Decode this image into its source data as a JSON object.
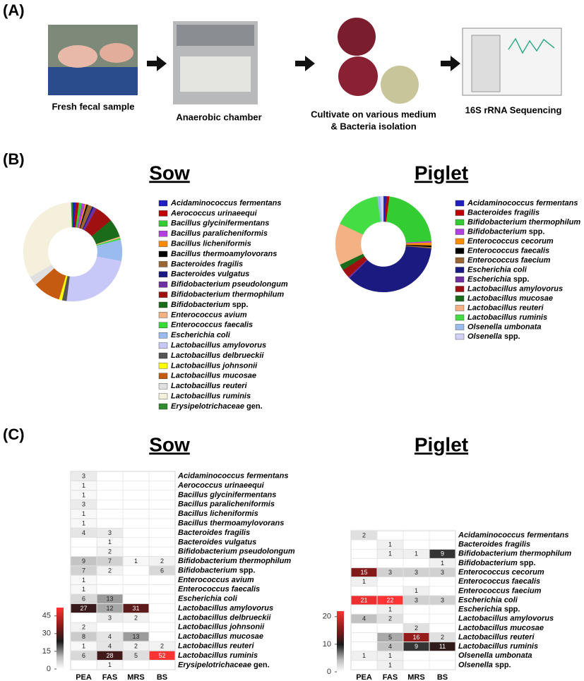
{
  "panel_labels": [
    "(A)",
    "(B)",
    "(C)"
  ],
  "workflow": {
    "steps": [
      {
        "caption": [
          "Fresh fecal sample"
        ]
      },
      {
        "caption": [
          "Anaerobic chamber"
        ]
      },
      {
        "caption": [
          "Cultivate on various medium",
          "& Bacteria isolation"
        ]
      },
      {
        "caption": [
          "16S rRNA Sequencing"
        ]
      }
    ]
  },
  "chart_data": [
    {
      "type": "pie",
      "title": "Sow",
      "hole": true,
      "categories": [
        "Acidaminococcus fermentans",
        "Aerococcus urinaeequi",
        "Bacillus glycinifermentans",
        "Bacillus paralicheniformis",
        "Bacillus licheniformis",
        "Bacillus thermoamylovorans",
        "Bacteroides fragilis",
        "Bacteroides vulgatus",
        "Bifidobacterium pseudolongum",
        "Bifidobacterium thermophilum",
        "Bifidobacterium spp.",
        "Enterococcus avium",
        "Enterococcus faecalis",
        "Escherichia coli",
        "Lactobacillus amylovorus",
        "Lactobacillus delbrueckii",
        "Lactobacillus johnsonii",
        "Lactobacillus mucosae",
        "Lactobacillus reuteri",
        "Lactobacillus ruminis",
        "Erysipelotrichaceae gen."
      ],
      "values": [
        1,
        1,
        1,
        1,
        0.5,
        0.5,
        1.5,
        0.5,
        1,
        6,
        6,
        0.5,
        0.5,
        7,
        24,
        1.5,
        1,
        9,
        3,
        33,
        0.5
      ],
      "colors": [
        "#1f1fbf",
        "#c00000",
        "#33cc33",
        "#b040e0",
        "#ff8c00",
        "#000000",
        "#996633",
        "#1a1a80",
        "#7030a0",
        "#a01010",
        "#1a6b1a",
        "#f4b183",
        "#33dd33",
        "#99bbee",
        "#c8c8f8",
        "#555555",
        "#ffff00",
        "#c55a11",
        "#e0e0e0",
        "#f5f0dc",
        "#2e8b2e"
      ]
    },
    {
      "type": "pie",
      "title": "Piglet",
      "hole": true,
      "categories": [
        "Acidaminococcus fermentans",
        "Bacteroides fragilis",
        "Bifidobacterium thermophilum",
        "Bifidobacterium spp.",
        "Enterococcus cecorum",
        "Enterococcus faecalis",
        "Enterococcus faecium",
        "Escherichia coli",
        "Escherichia spp.",
        "Lactobacillus amylovorus",
        "Lactobacillus mucosae",
        "Lactobacillus reuteri",
        "Lactobacillus ruminis",
        "Olsenella umbonata",
        "Olsenella spp."
      ],
      "values": [
        1,
        1,
        22,
        0.5,
        1,
        0.5,
        0.5,
        36,
        0.5,
        3,
        2,
        14,
        16,
        1,
        1
      ],
      "colors": [
        "#1f1fbf",
        "#c00000",
        "#33cc33",
        "#b040e0",
        "#ff8c00",
        "#000000",
        "#996633",
        "#1a1a80",
        "#7030a0",
        "#a01010",
        "#1a6b1a",
        "#f4b183",
        "#44dd44",
        "#99bbee",
        "#d0d0f8"
      ]
    },
    {
      "type": "heatmap",
      "title": "Sow",
      "rows": [
        "Acidaminococcus fermentans",
        "Aerococcus urinaeequi",
        "Bacillus glycinifermentans",
        "Bacillus paralicheniformis",
        "Bacillus licheniformis",
        "Bacillus thermoamylovorans",
        "Bacteroides fragilis",
        "Bacteroides vulgatus",
        "Bifidobacterium pseudolongum",
        "Bifidobacterium thermophilum",
        "Bifidobacterium spp.",
        "Enterococcus avium",
        "Enterococcus faecalis",
        "Escherichia coli",
        "Lactobacillus amylovorus",
        "Lactobacillus delbrueckii",
        "Lactobacillus johnsonii",
        "Lactobacillus mucosae",
        "Lactobacillus reuteri",
        "Lactobacillus ruminis",
        "Erysipelotrichaceae gen."
      ],
      "columns": [
        "PEA",
        "FAS",
        "MRS",
        "BS"
      ],
      "values": [
        [
          3,
          null,
          null,
          null
        ],
        [
          1,
          null,
          null,
          null
        ],
        [
          1,
          null,
          null,
          null
        ],
        [
          3,
          null,
          null,
          null
        ],
        [
          1,
          null,
          null,
          null
        ],
        [
          1,
          null,
          null,
          null
        ],
        [
          4,
          3,
          null,
          null
        ],
        [
          null,
          1,
          null,
          null
        ],
        [
          null,
          2,
          null,
          null
        ],
        [
          9,
          7,
          1,
          2
        ],
        [
          7,
          2,
          null,
          6
        ],
        [
          1,
          null,
          null,
          null
        ],
        [
          1,
          null,
          null,
          null
        ],
        [
          6,
          13,
          null,
          null
        ],
        [
          27,
          12,
          31,
          null
        ],
        [
          null,
          3,
          2,
          null
        ],
        [
          2,
          null,
          null,
          null
        ],
        [
          8,
          4,
          13,
          null
        ],
        [
          1,
          4,
          2,
          2
        ],
        [
          6,
          28,
          5,
          52
        ],
        [
          null,
          1,
          null,
          null
        ]
      ],
      "clim": [
        0,
        52
      ],
      "colorbar_ticks": [
        0,
        15,
        30,
        45
      ]
    },
    {
      "type": "heatmap",
      "title": "Piglet",
      "rows": [
        "Acidaminococcus fermentans",
        "Bacteroides fragilis",
        "Bifidobacterium thermophilum",
        "Bifidobacterium spp.",
        "Enterococcus cecorum",
        "Enterococcus faecalis",
        "Enterococcus faecium",
        "Escherichia coli",
        "Escherichia spp.",
        "Lactobacillus amylovorus",
        "Lactobacillus mucosae",
        "Lactobacillus reuteri",
        "Lactobacillus ruminis",
        "Olsenella umbonata",
        "Olsenella spp."
      ],
      "columns": [
        "PEA",
        "FAS",
        "MRS",
        "BS"
      ],
      "values": [
        [
          2,
          null,
          null,
          null
        ],
        [
          null,
          1,
          null,
          null
        ],
        [
          null,
          1,
          1,
          9
        ],
        [
          null,
          null,
          null,
          1
        ],
        [
          15,
          3,
          3,
          3
        ],
        [
          1,
          null,
          null,
          null
        ],
        [
          null,
          null,
          1,
          null
        ],
        [
          21,
          22,
          3,
          3
        ],
        [
          null,
          1,
          null,
          null
        ],
        [
          4,
          2,
          null,
          null
        ],
        [
          null,
          null,
          2,
          null
        ],
        [
          null,
          5,
          16,
          2
        ],
        [
          null,
          4,
          9,
          11
        ],
        [
          1,
          1,
          null,
          null
        ],
        [
          null,
          1,
          null,
          null
        ]
      ],
      "clim": [
        0,
        22
      ],
      "colorbar_ticks": [
        0,
        10,
        20
      ]
    }
  ]
}
